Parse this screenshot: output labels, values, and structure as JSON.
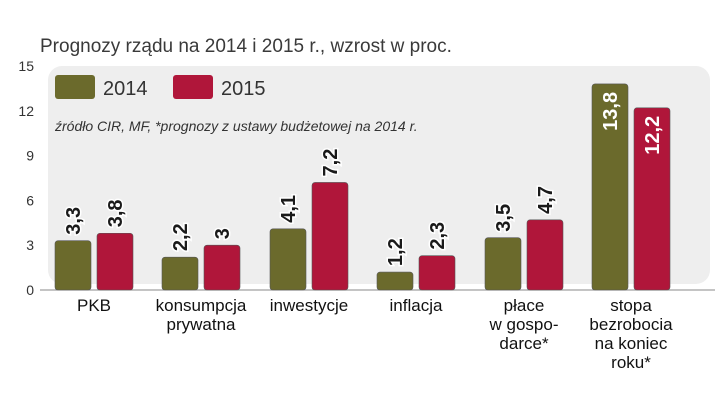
{
  "chart_data": {
    "type": "bar",
    "title": "Prognozy rządu na 2014 i 2015 r., wzrost w proc.",
    "note": "źródło CIR, MF, *prognozy z ustawy budżetowej na 2014 r.",
    "categories": [
      [
        "PKB"
      ],
      [
        "konsumpcja",
        "prywatna"
      ],
      [
        "inwestycje"
      ],
      [
        "inflacja"
      ],
      [
        "płace",
        "w gospo-",
        "darce*"
      ],
      [
        "stopa",
        "bezrobocia",
        "na koniec",
        "roku*"
      ]
    ],
    "series": [
      {
        "name": "2014",
        "color": "#6b6a2c",
        "values": [
          3.3,
          2.2,
          4.1,
          1.2,
          3.5,
          13.8
        ],
        "labels": [
          "3,3",
          "2,2",
          "4,1",
          "1,2",
          "3,5",
          "13,8"
        ]
      },
      {
        "name": "2015",
        "color": "#b0163a",
        "values": [
          3.8,
          3.0,
          7.2,
          2.3,
          4.7,
          12.2
        ],
        "labels": [
          "3,8",
          "3",
          "7,2",
          "2,3",
          "4,7",
          "12,2"
        ]
      }
    ],
    "yticks": [
      "0",
      "3",
      "6",
      "9",
      "12",
      "15"
    ],
    "ylim": [
      0,
      15
    ],
    "legend_position": "top-left",
    "grid": false
  }
}
